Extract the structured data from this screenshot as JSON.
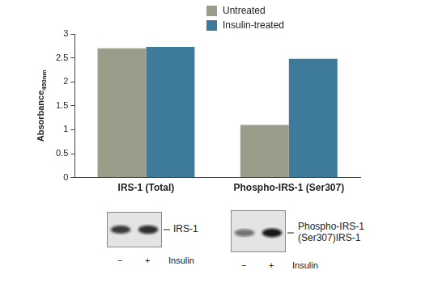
{
  "chart_data": {
    "type": "bar",
    "categories": [
      "IRS-1 (Total)",
      "Phospho-IRS-1 (Ser307)"
    ],
    "series": [
      {
        "name": "Untreated",
        "color": "#9b9d8b",
        "values": [
          2.7,
          1.1
        ]
      },
      {
        "name": "Insulin-treated",
        "color": "#3e7a99",
        "values": [
          2.73,
          2.48
        ]
      }
    ],
    "y_label": "Absorbance",
    "y_label_subscript": "450nm",
    "ylim": [
      0,
      3
    ],
    "yticks": [
      0,
      0.5,
      1,
      1.5,
      2,
      2.5,
      3
    ],
    "grid": false,
    "legend": "top"
  },
  "blots": [
    {
      "label": [
        "IRS-1"
      ],
      "lanes": [
        "−",
        "+"
      ],
      "treatment": "Insulin"
    },
    {
      "label": [
        "Phospho-IRS-1",
        "(Ser307)IRS-1"
      ],
      "lanes": [
        "−",
        "+"
      ],
      "treatment": "Insulin"
    }
  ]
}
